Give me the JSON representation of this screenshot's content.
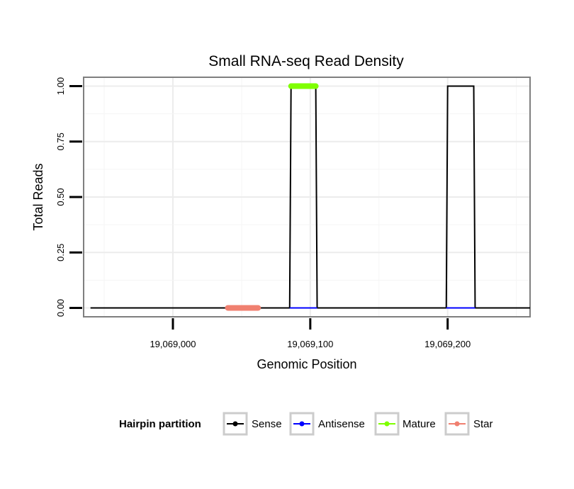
{
  "chart_data": {
    "type": "line",
    "title": "Small RNA-seq Read Density",
    "xlabel": "Genomic Position",
    "ylabel": "Total Reads",
    "xlim": [
      19068935,
      19069260
    ],
    "ylim": [
      -0.04,
      1.04
    ],
    "x_ticks": [
      19069000,
      19069100,
      19069200
    ],
    "x_tick_labels": [
      "19,069,000",
      "19,069,100",
      "19,069,200"
    ],
    "y_ticks": [
      0,
      0.25,
      0.5,
      0.75,
      1
    ],
    "y_tick_labels": [
      "0.00",
      "0.25",
      "0.50",
      "0.75",
      "1.00"
    ],
    "grid": true,
    "legend": {
      "title": "Hairpin partition",
      "position": "bottom",
      "entries": [
        {
          "name": "Sense",
          "color": "#000000"
        },
        {
          "name": "Antisense",
          "color": "#0000ff"
        },
        {
          "name": "Mature",
          "color": "#7fff00"
        },
        {
          "name": "Star",
          "color": "#f08070"
        }
      ]
    },
    "series": [
      {
        "name": "Sense",
        "color": "#000000",
        "x": [
          19068940,
          19069085,
          19069086,
          19069104,
          19069105,
          19069199,
          19069200,
          19069219,
          19069220,
          19069260
        ],
        "y": [
          0,
          0,
          1,
          1,
          0,
          0,
          1,
          1,
          0,
          0
        ]
      },
      {
        "name": "Antisense",
        "color": "#0000ff",
        "x": [
          19069085,
          19069105,
          19069199,
          19069220
        ],
        "y": [
          0,
          0,
          0,
          0
        ]
      },
      {
        "name": "Mature",
        "color": "#7fff00",
        "x": [
          19069086,
          19069104
        ],
        "y": [
          1,
          1
        ]
      },
      {
        "name": "Star",
        "color": "#f08070",
        "x": [
          19069040,
          19069062
        ],
        "y": [
          0,
          0
        ]
      }
    ]
  }
}
